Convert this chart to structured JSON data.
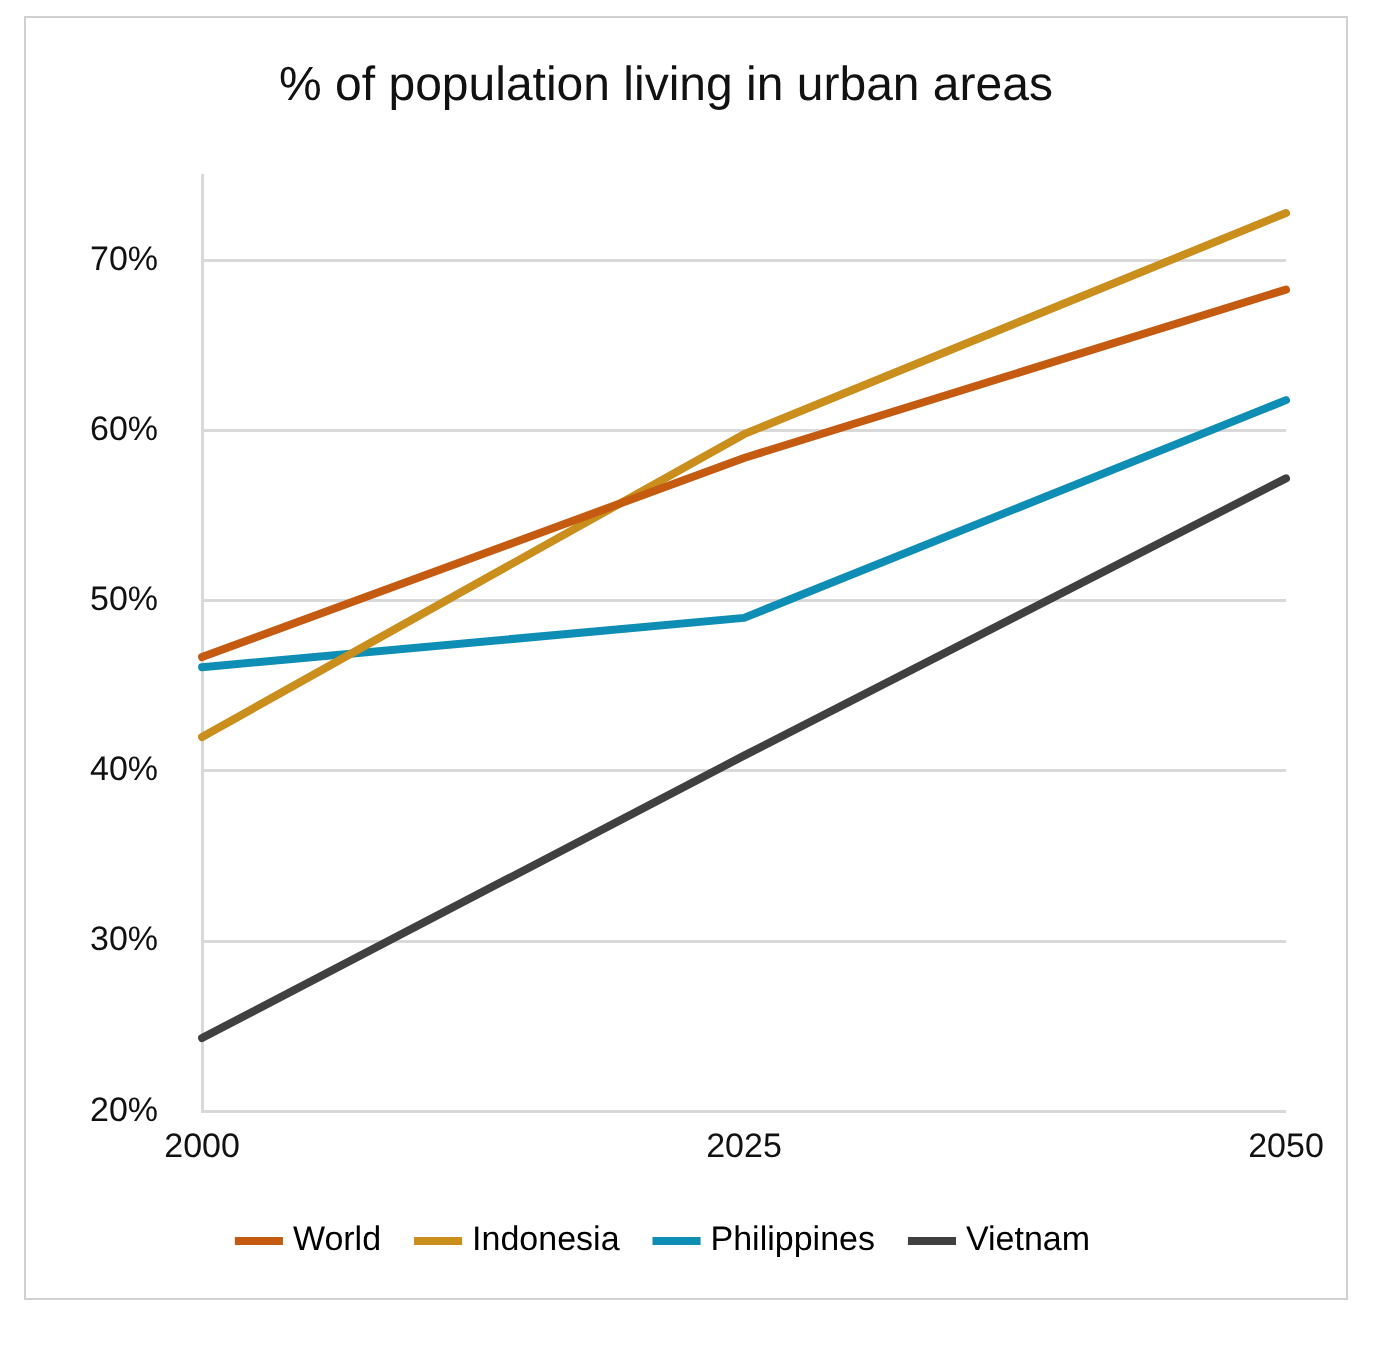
{
  "chart_data": {
    "type": "line",
    "title": "% of population living in urban areas",
    "categories": [
      "2000",
      "2025",
      "2050"
    ],
    "series": [
      {
        "name": "World",
        "color": "#c55a11",
        "values": [
          46.7,
          58.4,
          68.3
        ]
      },
      {
        "name": "Indonesia",
        "color": "#c98e1b",
        "values": [
          42.0,
          59.8,
          72.8
        ]
      },
      {
        "name": "Philippines",
        "color": "#0f8eb5",
        "values": [
          46.1,
          49.0,
          61.8
        ]
      },
      {
        "name": "Vietnam",
        "color": "#404040",
        "values": [
          24.3,
          40.9,
          57.2
        ]
      }
    ],
    "ylim": [
      20,
      75
    ],
    "yticks": [
      {
        "value": 20,
        "label": "20%"
      },
      {
        "value": 30,
        "label": "30%"
      },
      {
        "value": 40,
        "label": "40%"
      },
      {
        "value": 50,
        "label": "50%"
      },
      {
        "value": 60,
        "label": "60%"
      },
      {
        "value": 70,
        "label": "70%"
      }
    ],
    "grid": "y",
    "legend": "bottom",
    "marker": "none",
    "line_style": "solid"
  }
}
